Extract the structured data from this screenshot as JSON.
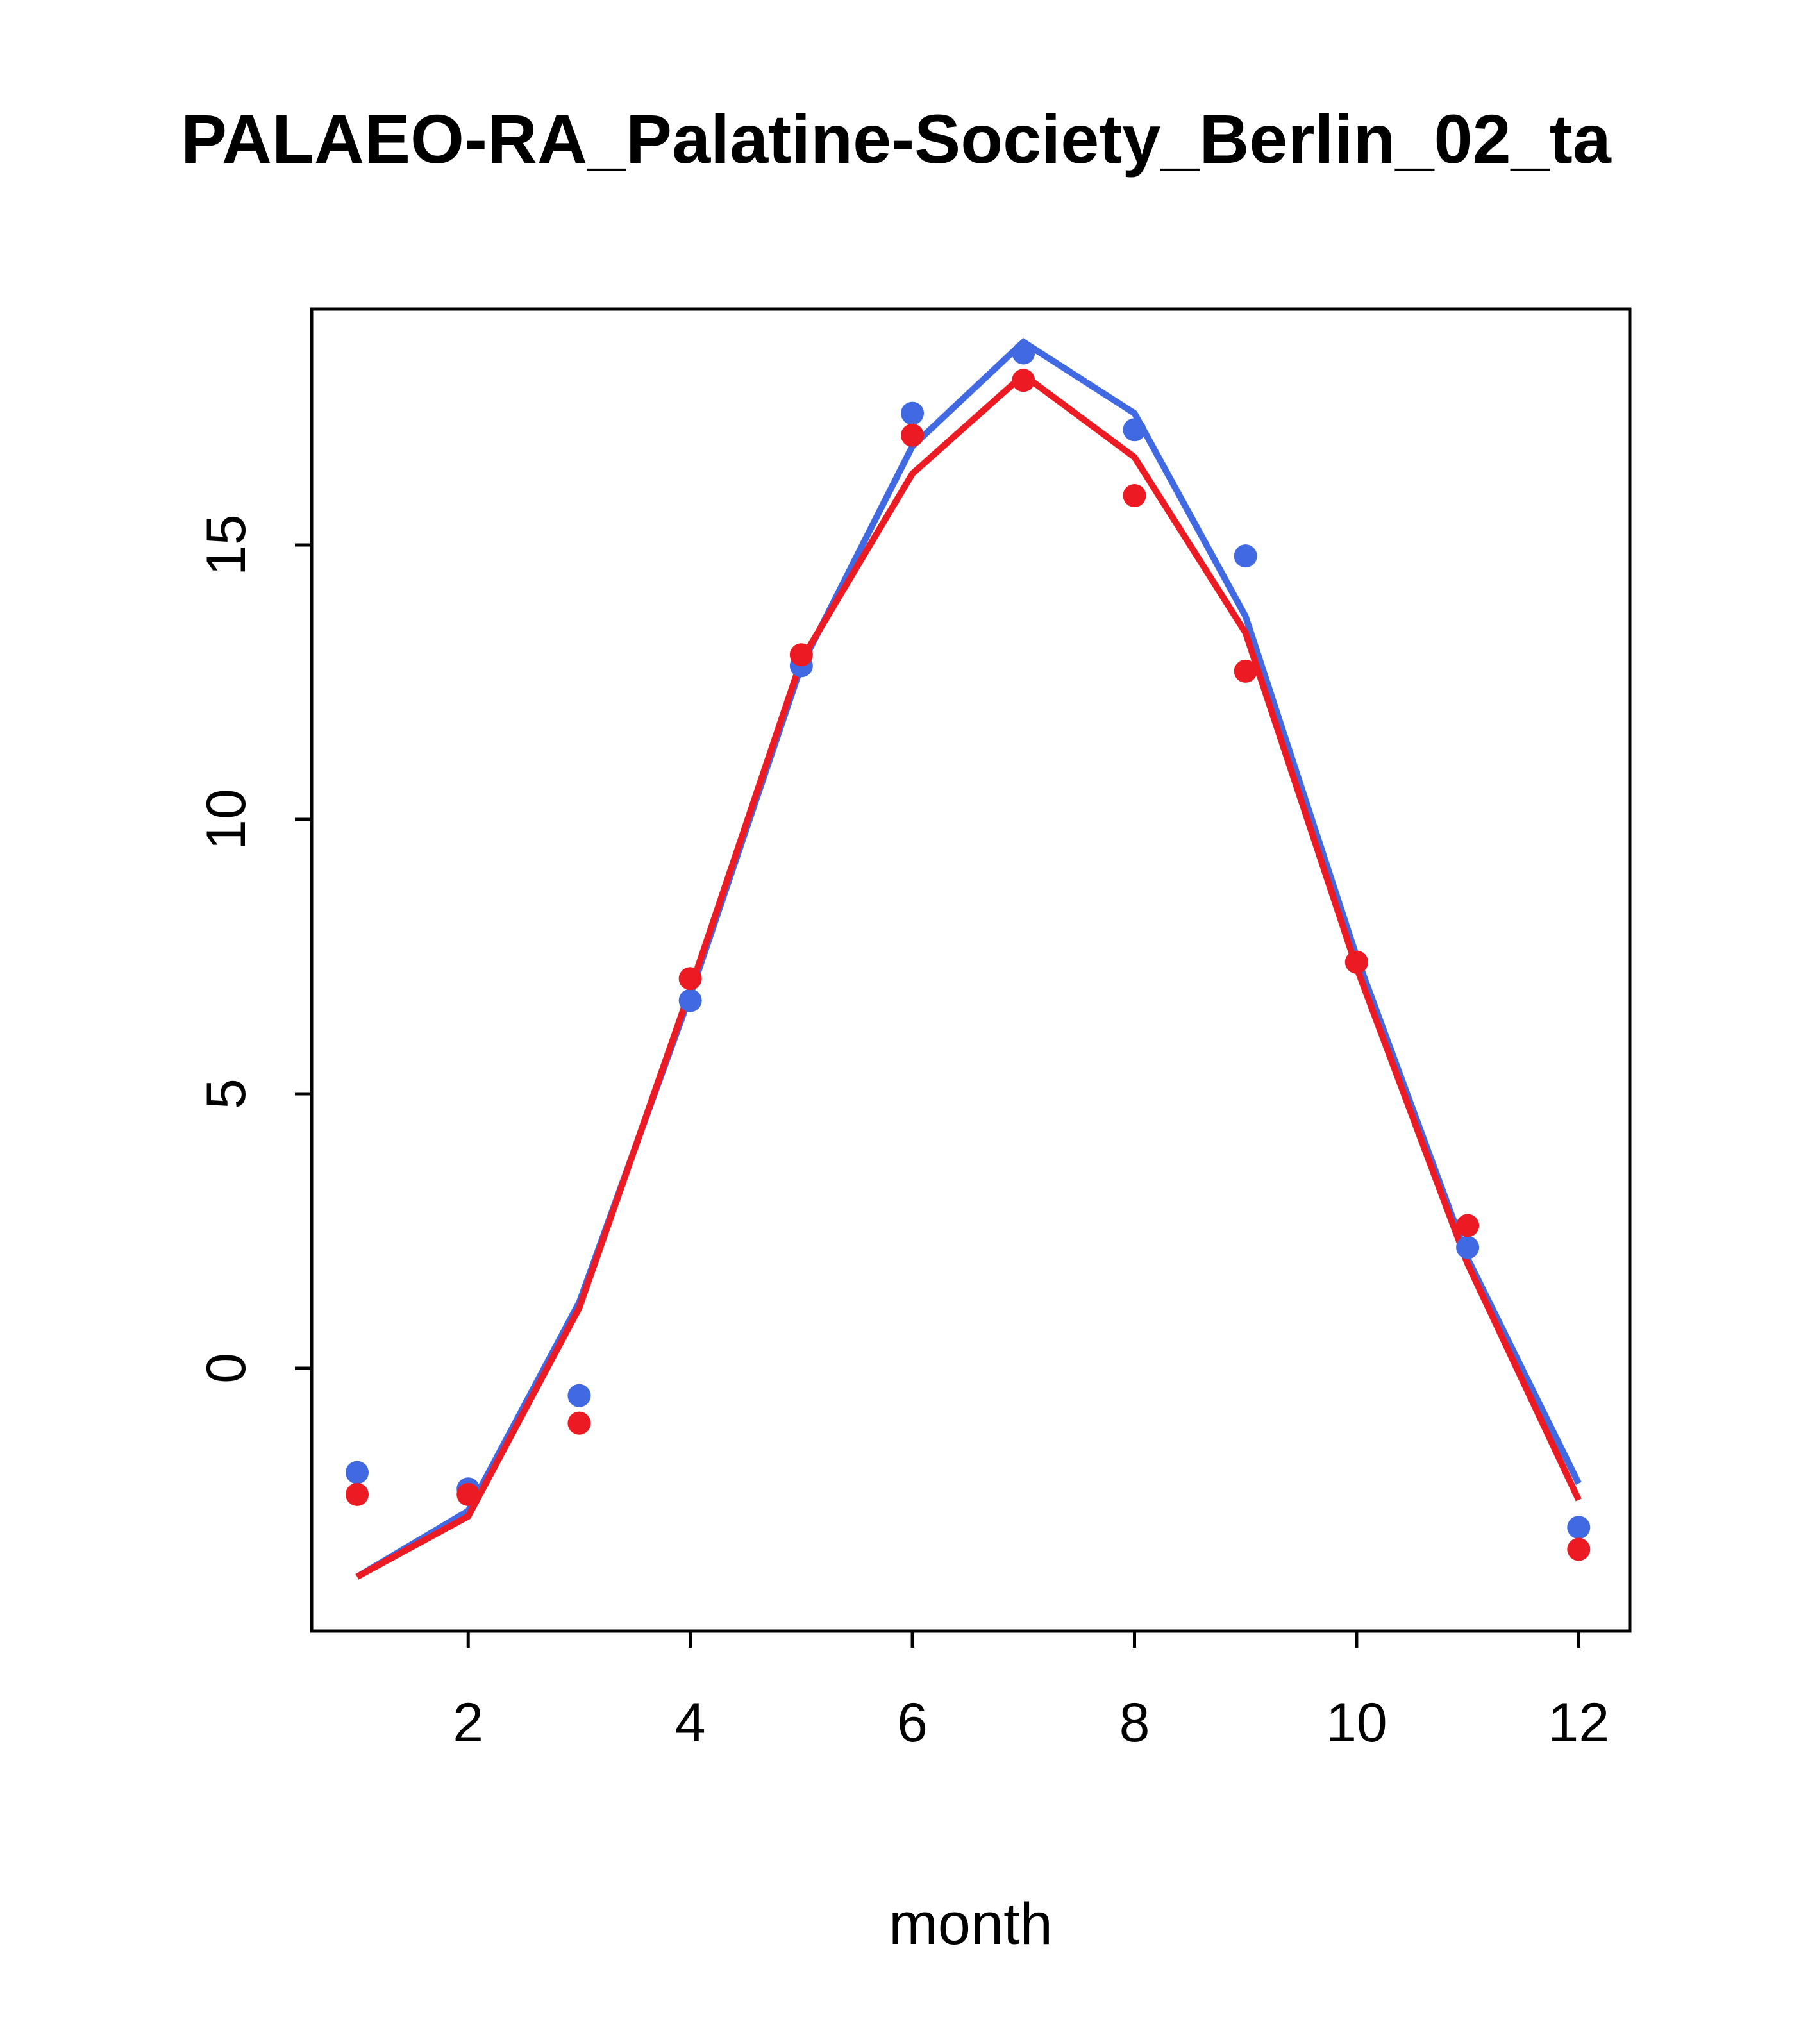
{
  "page": {
    "background": "#ffffff"
  },
  "chart_data": {
    "type": "line",
    "title": "PALAEO-RA_Palatine-Society_Berlin_02_ta",
    "xlabel": "month",
    "ylabel": "",
    "x": [
      1,
      2,
      3,
      4,
      5,
      6,
      7,
      8,
      9,
      10,
      11,
      12
    ],
    "xlim": [
      0.59,
      12.46
    ],
    "ylim": [
      -4.79,
      19.3
    ],
    "xticks": [
      2,
      4,
      6,
      8,
      10,
      12
    ],
    "yticks": [
      0,
      5,
      10,
      15
    ],
    "grid": false,
    "legend": null,
    "colors": {
      "blue": "#4169E1",
      "red": "#EC1B23",
      "axis": "#000000"
    },
    "series": [
      {
        "name": "blue-line",
        "type": "line",
        "color_key": "blue",
        "values": [
          -3.8,
          -2.6,
          1.2,
          6.8,
          12.8,
          16.8,
          18.7,
          17.4,
          13.7,
          7.5,
          2.0,
          -2.1
        ]
      },
      {
        "name": "red-line",
        "type": "line",
        "color_key": "red",
        "values": [
          -3.8,
          -2.7,
          1.1,
          6.9,
          12.9,
          16.3,
          18.1,
          16.6,
          13.4,
          7.3,
          1.9,
          -2.4
        ]
      },
      {
        "name": "blue-points",
        "type": "points",
        "color_key": "blue",
        "values": [
          -1.9,
          -2.2,
          -0.5,
          6.7,
          12.8,
          17.4,
          18.5,
          17.1,
          14.8,
          7.4,
          2.2,
          -2.9
        ]
      },
      {
        "name": "red-points",
        "type": "points",
        "color_key": "red",
        "values": [
          -2.3,
          -2.3,
          -1.0,
          7.1,
          13.0,
          17.0,
          18.0,
          15.9,
          12.7,
          7.4,
          2.6,
          -3.3
        ]
      }
    ]
  }
}
